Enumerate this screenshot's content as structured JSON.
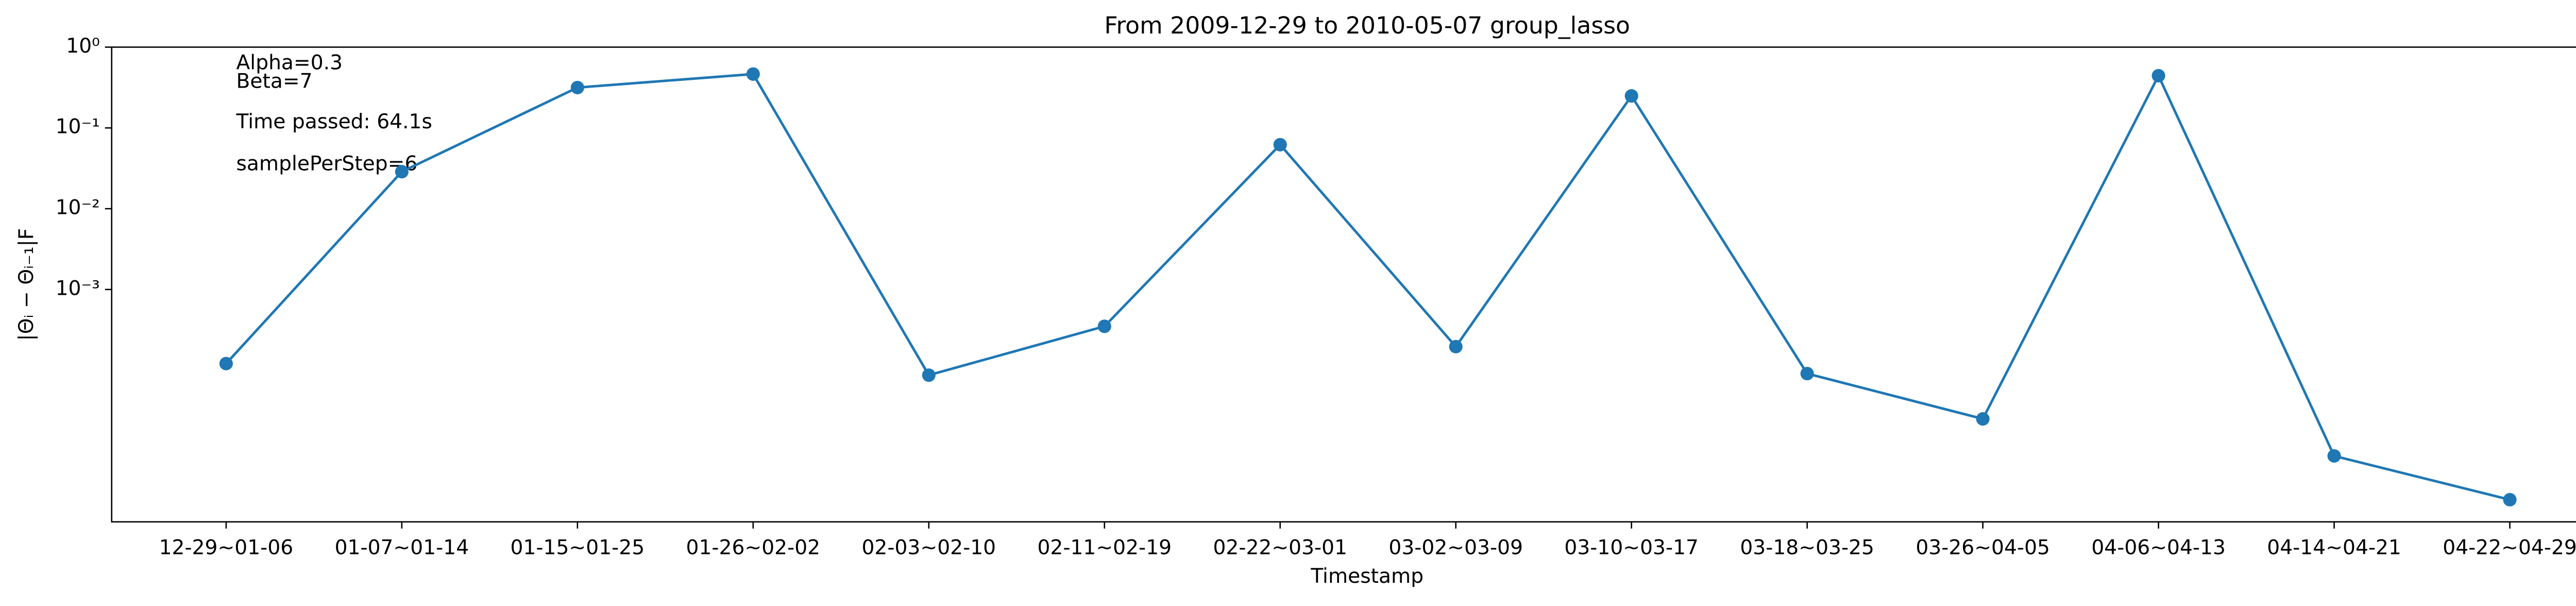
{
  "chart_data": {
    "type": "line",
    "title": "From 2009-12-29 to 2010-05-07 group_lasso",
    "x_label": "Timestamp",
    "y_label": "|Θᵢ − Θᵢ₋₁|F",
    "annotations": [
      "Alpha=0.3",
      "Beta=7",
      "Time passed: 64.1s",
      "samplePerStep=6"
    ],
    "categories": [
      "12-29~01-06",
      "01-07~01-14",
      "01-15~01-25",
      "01-26~02-02",
      "02-03~02-10",
      "02-11~02-19",
      "02-22~03-01",
      "03-02~03-09",
      "03-10~03-17",
      "03-18~03-25",
      "03-26~04-05",
      "04-06~04-13",
      "04-14~04-21",
      "04-22~04-29"
    ],
    "series": [
      {
        "name": "group_lasso",
        "color": "#1f77b4",
        "values": [
          0.000121,
          0.0287,
          0.316,
          0.464,
          8.7e-05,
          0.00035,
          0.062,
          0.000196,
          0.249,
          9.1e-05,
          2.5e-05,
          0.443,
          8.7e-06,
          2.5e-06
        ]
      }
    ],
    "yscale": "log",
    "ylim": [
      1.33e-06,
      1
    ],
    "yticks": [
      {
        "value": 1,
        "label": "10⁰"
      },
      {
        "value": 0.1,
        "label": "10⁻¹"
      },
      {
        "value": 0.01,
        "label": "10⁻²"
      },
      {
        "value": 0.001,
        "label": "10⁻³"
      }
    ],
    "grid": false
  }
}
